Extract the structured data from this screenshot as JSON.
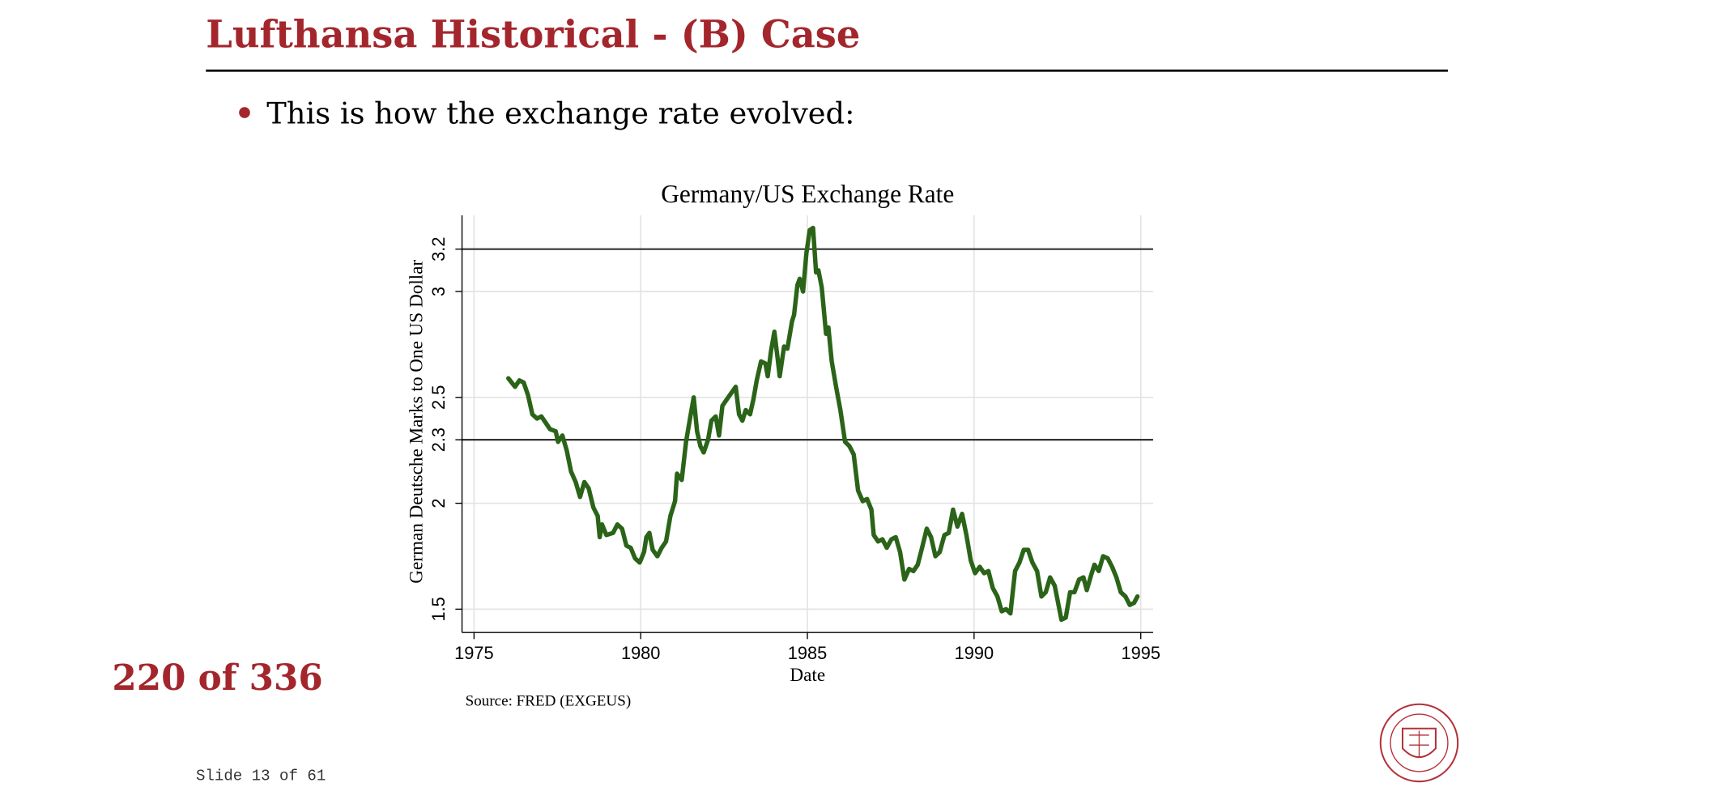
{
  "header": {
    "title": "Lufthansa Historical - (B) Case"
  },
  "bullet": "This is how the exchange rate evolved:",
  "counter": "220 of 336",
  "footer": "Slide 13 of 61",
  "chart_data": {
    "type": "line",
    "title": "Germany/US Exchange Rate",
    "x_label": "Date",
    "y_label": "German Deutsche Marks to One US Dollar",
    "source": "Source: FRED (EXGEUS)",
    "xlim": [
      1974.64,
      1995.37
    ],
    "xticks": [
      1975,
      1980,
      1985,
      1990,
      1995
    ],
    "ylim": [
      1.39,
      3.36
    ],
    "yticks": [
      1.5,
      2,
      2.3,
      2.5,
      3,
      3.2
    ],
    "grid": true,
    "hlines": [
      2.3,
      3.2
    ],
    "series": [
      {
        "name": "EXGEUS",
        "color": "#2b6419",
        "x": [
          1976.03,
          1976.23,
          1976.36,
          1976.49,
          1976.62,
          1976.75,
          1976.89,
          1977.02,
          1977.28,
          1977.45,
          1977.52,
          1977.65,
          1977.78,
          1977.91,
          1978.05,
          1978.18,
          1978.31,
          1978.44,
          1978.58,
          1978.71,
          1978.77,
          1978.84,
          1978.97,
          1979.17,
          1979.3,
          1979.44,
          1979.57,
          1979.7,
          1979.83,
          1979.97,
          1980.1,
          1980.17,
          1980.26,
          1980.36,
          1980.5,
          1980.63,
          1980.76,
          1980.89,
          1981.03,
          1981.09,
          1981.23,
          1981.36,
          1981.49,
          1981.59,
          1981.69,
          1981.79,
          1981.89,
          1982.02,
          1982.12,
          1982.25,
          1982.35,
          1982.45,
          1982.58,
          1982.85,
          1982.95,
          1983.05,
          1983.15,
          1983.28,
          1983.38,
          1983.48,
          1983.61,
          1983.74,
          1983.81,
          1983.91,
          1984.01,
          1984.11,
          1984.17,
          1984.3,
          1984.4,
          1984.54,
          1984.6,
          1984.7,
          1984.77,
          1984.87,
          1984.97,
          1985.07,
          1985.17,
          1985.26,
          1985.33,
          1985.43,
          1985.56,
          1985.63,
          1985.73,
          1985.86,
          1985.99,
          1986.13,
          1986.26,
          1986.39,
          1986.52,
          1986.66,
          1986.79,
          1986.92,
          1986.99,
          1987.12,
          1987.25,
          1987.38,
          1987.52,
          1987.65,
          1987.78,
          1987.91,
          1988.05,
          1988.18,
          1988.31,
          1988.44,
          1988.58,
          1988.71,
          1988.84,
          1988.97,
          1989.11,
          1989.24,
          1989.37,
          1989.5,
          1989.64,
          1989.77,
          1989.9,
          1990.03,
          1990.17,
          1990.3,
          1990.43,
          1990.56,
          1990.7,
          1990.83,
          1990.96,
          1991.09,
          1991.23,
          1991.36,
          1991.49,
          1991.62,
          1991.75,
          1991.89,
          1992.02,
          1992.15,
          1992.28,
          1992.42,
          1992.52,
          1992.62,
          1992.75,
          1992.88,
          1993.01,
          1993.15,
          1993.28,
          1993.38,
          1993.51,
          1993.61,
          1993.74,
          1993.87,
          1994.01,
          1994.14,
          1994.27,
          1994.4,
          1994.54,
          1994.67,
          1994.8,
          1994.9
        ],
        "values": [
          2.59,
          2.55,
          2.58,
          2.57,
          2.51,
          2.42,
          2.4,
          2.41,
          2.35,
          2.34,
          2.29,
          2.32,
          2.25,
          2.15,
          2.1,
          2.03,
          2.1,
          2.07,
          1.98,
          1.94,
          1.84,
          1.9,
          1.85,
          1.86,
          1.9,
          1.88,
          1.8,
          1.79,
          1.74,
          1.72,
          1.77,
          1.84,
          1.86,
          1.78,
          1.75,
          1.79,
          1.82,
          1.94,
          2.01,
          2.14,
          2.11,
          2.29,
          2.41,
          2.5,
          2.34,
          2.27,
          2.24,
          2.3,
          2.39,
          2.41,
          2.32,
          2.46,
          2.49,
          2.55,
          2.42,
          2.39,
          2.44,
          2.42,
          2.49,
          2.58,
          2.67,
          2.66,
          2.6,
          2.72,
          2.81,
          2.68,
          2.6,
          2.74,
          2.73,
          2.86,
          2.89,
          3.03,
          3.06,
          3.0,
          3.18,
          3.29,
          3.3,
          3.09,
          3.1,
          3.02,
          2.8,
          2.83,
          2.67,
          2.55,
          2.44,
          2.29,
          2.27,
          2.23,
          2.06,
          2.01,
          2.02,
          1.97,
          1.85,
          1.82,
          1.83,
          1.79,
          1.83,
          1.84,
          1.77,
          1.64,
          1.69,
          1.68,
          1.71,
          1.79,
          1.88,
          1.84,
          1.75,
          1.77,
          1.85,
          1.86,
          1.97,
          1.89,
          1.95,
          1.85,
          1.73,
          1.67,
          1.7,
          1.67,
          1.68,
          1.6,
          1.56,
          1.49,
          1.5,
          1.48,
          1.68,
          1.72,
          1.78,
          1.78,
          1.72,
          1.68,
          1.56,
          1.58,
          1.65,
          1.61,
          1.53,
          1.45,
          1.46,
          1.58,
          1.58,
          1.64,
          1.65,
          1.59,
          1.66,
          1.71,
          1.68,
          1.75,
          1.74,
          1.7,
          1.65,
          1.58,
          1.56,
          1.52,
          1.53,
          1.56
        ]
      }
    ]
  }
}
